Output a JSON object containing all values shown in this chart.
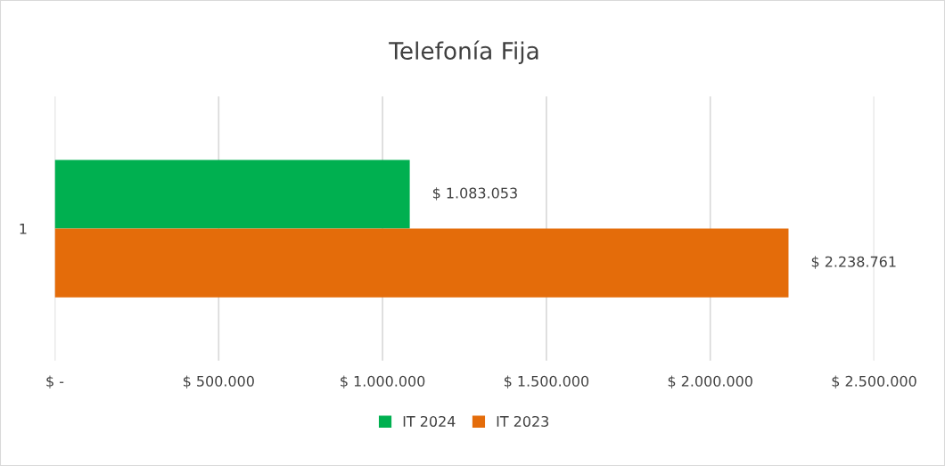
{
  "chart_data": {
    "type": "bar",
    "orientation": "horizontal",
    "title": "Telefonía Fija",
    "categories": [
      "1"
    ],
    "series": [
      {
        "name": "IT 2024",
        "color": "#00b050",
        "values": [
          1083053
        ],
        "value_labels": [
          "$ 1.083.053"
        ]
      },
      {
        "name": "IT 2023",
        "color": "#e46c0a",
        "values": [
          2238761
        ],
        "value_labels": [
          "$ 2.238.761"
        ]
      }
    ],
    "xlim": [
      0,
      2500000
    ],
    "xticks": [
      {
        "value": 0,
        "label": "$ -"
      },
      {
        "value": 500000,
        "label": "$ 500.000"
      },
      {
        "value": 1000000,
        "label": "$ 1.000.000"
      },
      {
        "value": 1500000,
        "label": "$ 1.500.000"
      },
      {
        "value": 2000000,
        "label": "$ 2.000.000"
      },
      {
        "value": 2500000,
        "label": "$ 2.500.000"
      }
    ],
    "grid": "x",
    "legend": "bottom"
  }
}
